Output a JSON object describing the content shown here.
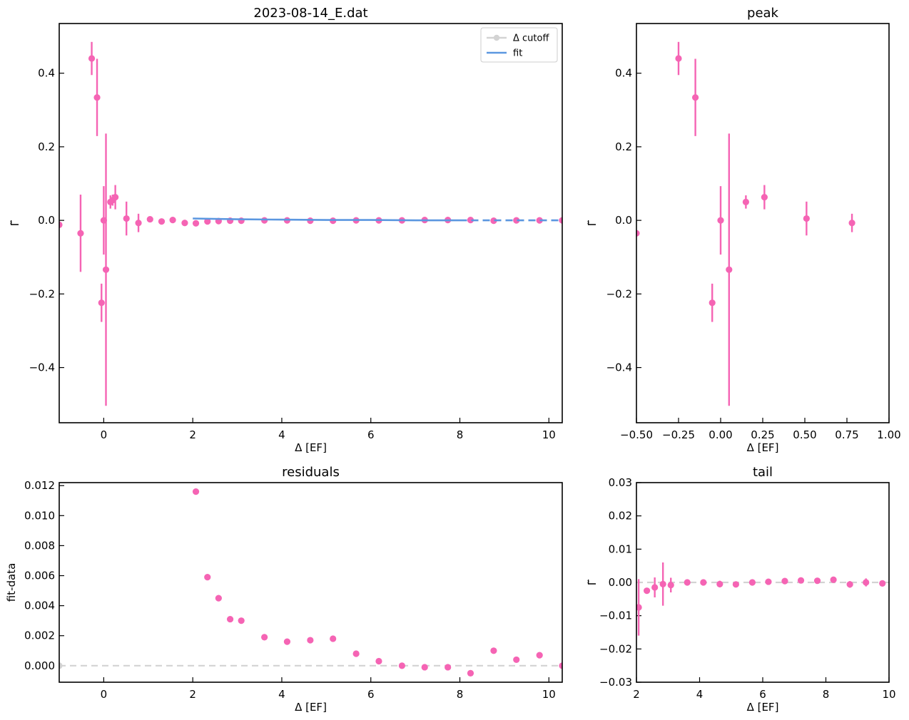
{
  "colors": {
    "points": "#f564b4",
    "fit": "#5b97e0",
    "cutoff": "#d3d3d3",
    "axes": "#000000"
  },
  "chart_data": [
    {
      "id": "main",
      "type": "scatter",
      "title": "2023-08-14_E.dat",
      "xlabel": "Δ [EF]",
      "ylabel": "Γ̃",
      "xlim": [
        -1.0,
        10.3
      ],
      "ylim": [
        -0.55,
        0.535
      ],
      "xticks": [
        0,
        2,
        4,
        6,
        8,
        10
      ],
      "xtick_labels": [
        "0",
        "2",
        "4",
        "6",
        "8",
        "10"
      ],
      "yticks": [
        -0.4,
        -0.2,
        0.0,
        0.2,
        0.4
      ],
      "ytick_labels": [
        "−0.4",
        "−0.2",
        "0.0",
        "0.2",
        "0.4"
      ],
      "legend": {
        "placement": "top-right",
        "entries": [
          {
            "label": "Δ cutoff",
            "style": "cutoff"
          },
          {
            "label": "fit",
            "style": "fit"
          }
        ]
      },
      "series": [
        {
          "name": "data",
          "style": "points",
          "points": [
            {
              "x": -1.0,
              "y": -0.012,
              "err": 0.0
            },
            {
              "x": -0.52,
              "y": -0.035,
              "err": 0.105
            },
            {
              "x": -0.27,
              "y": 0.44,
              "err": 0.045
            },
            {
              "x": -0.15,
              "y": 0.334,
              "err": 0.105
            },
            {
              "x": -0.05,
              "y": -0.224,
              "err": 0.052
            },
            {
              "x": 0.0,
              "y": 0.0,
              "err": 0.093
            },
            {
              "x": 0.05,
              "y": -0.134,
              "err": 0.37
            },
            {
              "x": 0.15,
              "y": 0.05,
              "err": 0.018
            },
            {
              "x": 0.2,
              "y": 0.055,
              "err": 0.015
            },
            {
              "x": 0.26,
              "y": 0.063,
              "err": 0.033
            },
            {
              "x": 0.51,
              "y": 0.005,
              "err": 0.046
            },
            {
              "x": 0.78,
              "y": -0.007,
              "err": 0.025
            },
            {
              "x": 1.04,
              "y": 0.003,
              "err": 0.0
            },
            {
              "x": 1.3,
              "y": -0.003,
              "err": 0.0
            },
            {
              "x": 1.55,
              "y": 0.001,
              "err": 0.0
            },
            {
              "x": 1.82,
              "y": -0.007,
              "err": 0.0
            },
            {
              "x": 2.07,
              "y": -0.008,
              "err": 0.0
            },
            {
              "x": 2.33,
              "y": -0.003,
              "err": 0.0
            },
            {
              "x": 2.58,
              "y": -0.002,
              "err": 0.0
            },
            {
              "x": 2.84,
              "y": -0.001,
              "err": 0.0
            },
            {
              "x": 3.09,
              "y": -0.001,
              "err": 0.0
            },
            {
              "x": 3.61,
              "y": 0.0,
              "err": 0.0
            },
            {
              "x": 4.12,
              "y": 0.0,
              "err": 0.0
            },
            {
              "x": 4.64,
              "y": -0.001,
              "err": 0.0
            },
            {
              "x": 5.15,
              "y": -0.001,
              "err": 0.0
            },
            {
              "x": 5.67,
              "y": 0.0,
              "err": 0.0
            },
            {
              "x": 6.18,
              "y": 0.0,
              "err": 0.0
            },
            {
              "x": 6.7,
              "y": 0.0,
              "err": 0.0
            },
            {
              "x": 7.21,
              "y": 0.001,
              "err": 0.0
            },
            {
              "x": 7.73,
              "y": 0.001,
              "err": 0.0
            },
            {
              "x": 8.24,
              "y": 0.001,
              "err": 0.0
            },
            {
              "x": 8.76,
              "y": -0.001,
              "err": 0.0
            },
            {
              "x": 9.27,
              "y": 0.0,
              "err": 0.0
            },
            {
              "x": 9.79,
              "y": 0.0,
              "err": 0.0
            },
            {
              "x": 10.3,
              "y": 0.0,
              "err": 0.0
            }
          ]
        },
        {
          "name": "fit",
          "style": "fit",
          "x": [
            2.0,
            3.0,
            4.0,
            5.0,
            6.0,
            7.0,
            8.0
          ],
          "y": [
            0.005,
            0.003,
            0.002,
            0.001,
            0.001,
            0.0,
            0.0
          ]
        },
        {
          "name": "fit-extrapolated",
          "style": "fit-dashed",
          "x": [
            8.0,
            9.0,
            10.3
          ],
          "y": [
            0.0,
            0.0,
            0.0
          ]
        }
      ]
    },
    {
      "id": "peak",
      "type": "scatter",
      "title": "peak",
      "xlabel": "Δ [EF]",
      "ylabel": "Γ̃",
      "xlim": [
        -0.5,
        1.0
      ],
      "ylim": [
        -0.55,
        0.535
      ],
      "xticks": [
        -0.5,
        -0.25,
        0.0,
        0.25,
        0.5,
        0.75,
        1.0
      ],
      "xtick_labels": [
        "−0.50",
        "−0.25",
        "0.00",
        "0.25",
        "0.50",
        "0.75",
        "1.00"
      ],
      "yticks": [
        -0.4,
        -0.2,
        0.0,
        0.2,
        0.4
      ],
      "ytick_labels": [
        "−0.4",
        "−0.2",
        "0.0",
        "0.2",
        "0.4"
      ],
      "series": [
        {
          "name": "data",
          "style": "points",
          "points": [
            {
              "x": -0.5,
              "y": -0.035,
              "err": 0.0
            },
            {
              "x": -0.25,
              "y": 0.44,
              "err": 0.045
            },
            {
              "x": -0.15,
              "y": 0.334,
              "err": 0.105
            },
            {
              "x": -0.05,
              "y": -0.224,
              "err": 0.052
            },
            {
              "x": 0.0,
              "y": 0.0,
              "err": 0.093
            },
            {
              "x": 0.05,
              "y": -0.134,
              "err": 0.37
            },
            {
              "x": 0.15,
              "y": 0.05,
              "err": 0.018
            },
            {
              "x": 0.26,
              "y": 0.063,
              "err": 0.033
            },
            {
              "x": 0.51,
              "y": 0.005,
              "err": 0.046
            },
            {
              "x": 0.78,
              "y": -0.007,
              "err": 0.025
            }
          ]
        }
      ]
    },
    {
      "id": "residuals",
      "type": "scatter",
      "title": "residuals",
      "xlabel": "Δ [EF]",
      "ylabel": "fit-data",
      "xlim": [
        -1.0,
        10.3
      ],
      "ylim": [
        -0.0011,
        0.0122
      ],
      "xticks": [
        0,
        2,
        4,
        6,
        8,
        10
      ],
      "xtick_labels": [
        "0",
        "2",
        "4",
        "6",
        "8",
        "10"
      ],
      "yticks": [
        0.0,
        0.002,
        0.004,
        0.006,
        0.008,
        0.01,
        0.012
      ],
      "ytick_labels": [
        "0.000",
        "0.002",
        "0.004",
        "0.006",
        "0.008",
        "0.010",
        "0.012"
      ],
      "series": [
        {
          "name": "cutoff-line",
          "style": "cutoff-dashed",
          "x": [
            -1.0,
            10.3
          ],
          "y": [
            0.0,
            0.0
          ]
        },
        {
          "name": "data",
          "style": "points",
          "points": [
            {
              "x": -1.0,
              "y": 0.0,
              "err": 0.0,
              "muted": true
            },
            {
              "x": 2.07,
              "y": 0.0116,
              "err": 0.0
            },
            {
              "x": 2.33,
              "y": 0.0059,
              "err": 0.0
            },
            {
              "x": 2.58,
              "y": 0.0045,
              "err": 0.0
            },
            {
              "x": 2.84,
              "y": 0.0031,
              "err": 0.0
            },
            {
              "x": 3.09,
              "y": 0.003,
              "err": 0.0
            },
            {
              "x": 3.61,
              "y": 0.0019,
              "err": 0.0
            },
            {
              "x": 4.12,
              "y": 0.0016,
              "err": 0.0
            },
            {
              "x": 4.64,
              "y": 0.0017,
              "err": 0.0
            },
            {
              "x": 5.15,
              "y": 0.0018,
              "err": 0.0
            },
            {
              "x": 5.67,
              "y": 0.0008,
              "err": 0.0
            },
            {
              "x": 6.18,
              "y": 0.0003,
              "err": 0.0
            },
            {
              "x": 6.7,
              "y": 0.0,
              "err": 0.0
            },
            {
              "x": 7.21,
              "y": -0.0001,
              "err": 0.0
            },
            {
              "x": 7.73,
              "y": -0.0001,
              "err": 0.0
            },
            {
              "x": 8.24,
              "y": -0.0005,
              "err": 0.0
            },
            {
              "x": 8.76,
              "y": 0.001,
              "err": 0.0
            },
            {
              "x": 9.27,
              "y": 0.0004,
              "err": 0.0
            },
            {
              "x": 9.79,
              "y": 0.0007,
              "err": 0.0
            },
            {
              "x": 10.3,
              "y": 0.0,
              "err": 0.0
            }
          ]
        }
      ]
    },
    {
      "id": "tail",
      "type": "scatter",
      "title": "tail",
      "xlabel": "Δ [EF]",
      "ylabel": "Γ̃",
      "xlim": [
        2.0,
        10.0
      ],
      "ylim": [
        -0.03,
        0.03
      ],
      "xticks": [
        2,
        4,
        6,
        8,
        10
      ],
      "xtick_labels": [
        "2",
        "4",
        "6",
        "8",
        "10"
      ],
      "yticks": [
        -0.03,
        -0.02,
        -0.01,
        0.0,
        0.01,
        0.02,
        0.03
      ],
      "ytick_labels": [
        "−0.03",
        "−0.02",
        "−0.01",
        "0.00",
        "0.01",
        "0.02",
        "0.03"
      ],
      "series": [
        {
          "name": "cutoff-line",
          "style": "cutoff-dashed",
          "x": [
            2.0,
            10.0
          ],
          "y": [
            0.0,
            0.0
          ]
        },
        {
          "name": "data",
          "style": "points",
          "points": [
            {
              "x": 2.07,
              "y": -0.0075,
              "err": 0.0085
            },
            {
              "x": 2.33,
              "y": -0.0025,
              "err": 0.0
            },
            {
              "x": 2.58,
              "y": -0.0015,
              "err": 0.003
            },
            {
              "x": 2.84,
              "y": -0.0005,
              "err": 0.0065
            },
            {
              "x": 3.09,
              "y": -0.0008,
              "err": 0.0022
            },
            {
              "x": 3.61,
              "y": 0.0,
              "err": 0.0
            },
            {
              "x": 4.12,
              "y": 0.0,
              "err": 0.0
            },
            {
              "x": 4.64,
              "y": -0.0005,
              "err": 0.001
            },
            {
              "x": 5.15,
              "y": -0.0006,
              "err": 0.0
            },
            {
              "x": 5.67,
              "y": 0.0,
              "err": 0.0
            },
            {
              "x": 6.18,
              "y": 0.0002,
              "err": 0.0
            },
            {
              "x": 6.7,
              "y": 0.0004,
              "err": 0.0
            },
            {
              "x": 7.21,
              "y": 0.0006,
              "err": 0.0
            },
            {
              "x": 7.73,
              "y": 0.0005,
              "err": 0.0
            },
            {
              "x": 8.24,
              "y": 0.0008,
              "err": 0.0
            },
            {
              "x": 8.76,
              "y": -0.0006,
              "err": 0.001
            },
            {
              "x": 9.27,
              "y": 0.0,
              "err": 0.0012
            },
            {
              "x": 9.79,
              "y": -0.0003,
              "err": 0.0
            }
          ]
        }
      ]
    }
  ]
}
